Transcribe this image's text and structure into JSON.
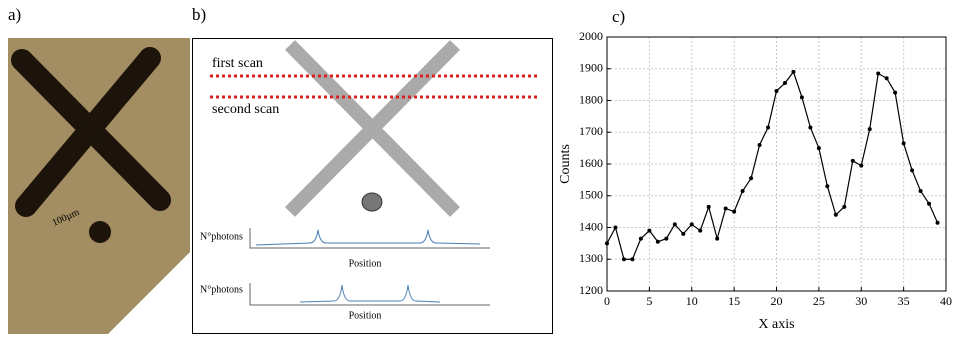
{
  "panel_a": {
    "label": "a)",
    "scale_label": "100µm"
  },
  "panel_b": {
    "label": "b)",
    "first_scan": "first scan",
    "second_scan": "second scan",
    "plot_1": {
      "y_label": "N°photons",
      "x_label": "Position"
    },
    "plot_2": {
      "y_label": "N°photons",
      "x_label": "Position"
    }
  },
  "panel_c": {
    "label": "c)"
  },
  "chart_data": {
    "type": "line",
    "x_label": "X axis",
    "y_label": "Counts",
    "x": [
      0,
      1,
      2,
      3,
      4,
      5,
      6,
      7,
      8,
      9,
      10,
      11,
      12,
      13,
      14,
      15,
      16,
      17,
      18,
      19,
      20,
      21,
      22,
      23,
      24,
      25,
      26,
      27,
      28,
      29,
      30,
      31,
      32,
      33,
      34,
      35,
      36,
      37,
      38,
      39
    ],
    "values": [
      1350,
      1400,
      1300,
      1300,
      1365,
      1390,
      1355,
      1365,
      1410,
      1380,
      1410,
      1390,
      1465,
      1365,
      1460,
      1450,
      1515,
      1555,
      1660,
      1715,
      1830,
      1855,
      1890,
      1810,
      1715,
      1650,
      1530,
      1440,
      1465,
      1610,
      1595,
      1710,
      1885,
      1870,
      1825,
      1665,
      1580,
      1515,
      1475,
      1415
    ],
    "color": "#000000",
    "xlim": [
      0,
      40
    ],
    "ylim": [
      1200,
      2000
    ],
    "xticks": [
      0,
      5,
      10,
      15,
      20,
      25,
      30,
      35,
      40
    ],
    "yticks": [
      1200,
      1300,
      1400,
      1500,
      1600,
      1700,
      1800,
      1900,
      2000
    ],
    "grid": true
  }
}
